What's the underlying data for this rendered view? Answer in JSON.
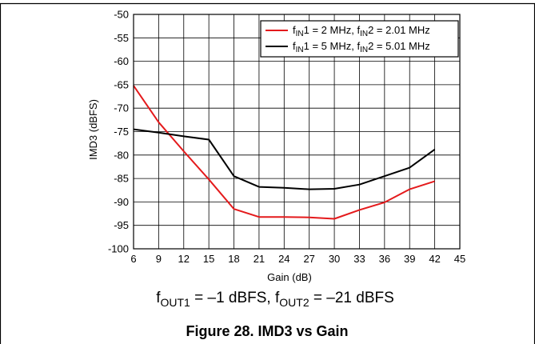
{
  "chart_data": {
    "type": "line",
    "title": "",
    "xlabel": "Gain (dB)",
    "ylabel": "IMD3 (dBFS)",
    "xlim": [
      6,
      45
    ],
    "ylim": [
      -100,
      -50
    ],
    "x_ticks": [
      6,
      9,
      12,
      15,
      18,
      21,
      24,
      27,
      30,
      33,
      36,
      39,
      42,
      45
    ],
    "y_ticks": [
      -50,
      -55,
      -60,
      -65,
      -70,
      -75,
      -80,
      -85,
      -90,
      -95,
      -100
    ],
    "grid": true,
    "legend_position": "top-right",
    "series": [
      {
        "legend": {
          "f1": "f",
          "s1": "IN",
          "a1": "1 = 2 MHz, ",
          "f2": "f",
          "s2": "IN",
          "a2": "2 = 2.01 MHz"
        },
        "color": "#e41a1c",
        "x": [
          6,
          9,
          12,
          15,
          18,
          21,
          24,
          27,
          30,
          33,
          36,
          39,
          42,
          45
        ],
        "y": [
          -65.2,
          -73.0,
          -79.2,
          -85.2,
          -91.5,
          -93.2,
          -93.2,
          -93.3,
          -93.6,
          -91.7,
          -90.1,
          -87.3,
          -85.6,
          null
        ]
      },
      {
        "legend": {
          "f1": "f",
          "s1": "IN",
          "a1": "1 = 5 MHz, ",
          "f2": "f",
          "s2": "IN",
          "a2": "2 = 5.01 MHz"
        },
        "color": "#000000",
        "x": [
          6,
          9,
          12,
          15,
          18,
          21,
          24,
          27,
          30,
          33,
          36,
          39,
          42,
          45
        ],
        "y": [
          -74.5,
          -75.2,
          -76.0,
          -76.7,
          -84.5,
          -86.8,
          -87.0,
          -87.3,
          -87.2,
          -86.3,
          -84.5,
          -82.7,
          -78.8,
          null
        ]
      }
    ],
    "note": {
      "f1": "f",
      "s1": "OUT1",
      "a1": " = –1 dBFS, ",
      "f2": "f",
      "s2": "OUT2",
      "a2": " = –21 dBFS"
    },
    "caption": "Figure 28. IMD3 vs Gain"
  }
}
